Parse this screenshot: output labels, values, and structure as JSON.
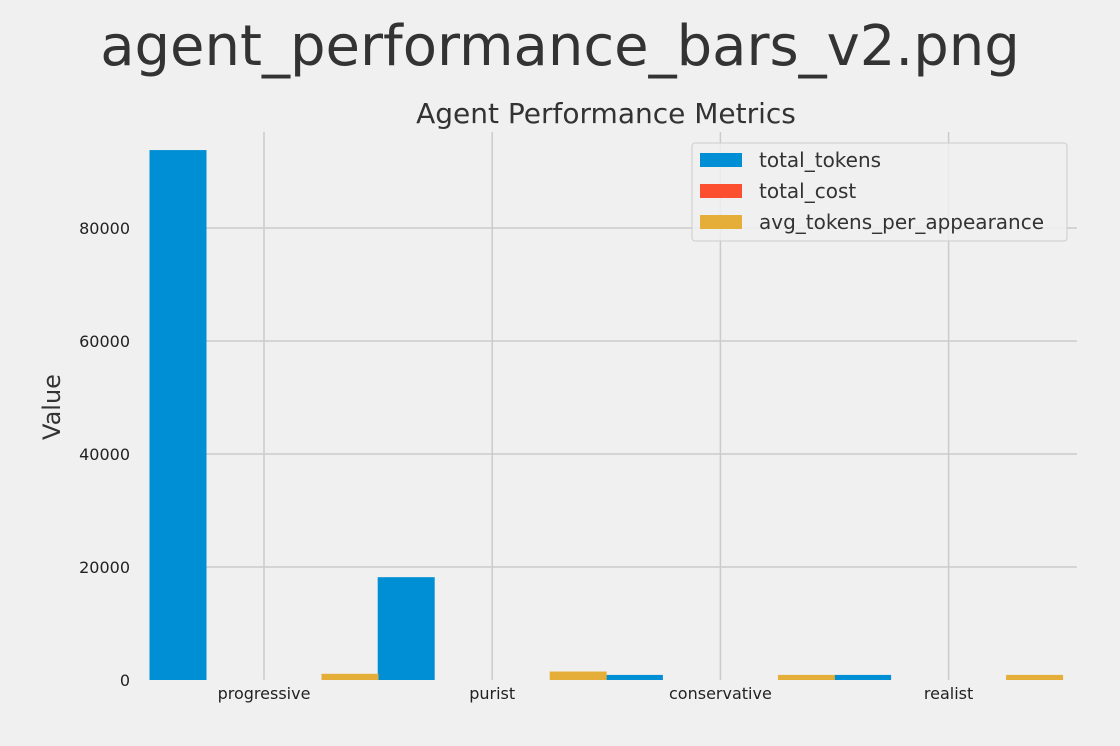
{
  "figure": {
    "suptitle": "agent_performance_bars_v2.png"
  },
  "chart_data": {
    "type": "bar",
    "title": "Agent Performance Metrics",
    "xlabel": "",
    "ylabel": "Value",
    "categories": [
      "progressive",
      "purist",
      "conservative",
      "realist"
    ],
    "series": [
      {
        "name": "total_tokens",
        "color": "#008fd5",
        "values": [
          93800,
          18200,
          900,
          900
        ]
      },
      {
        "name": "total_cost",
        "color": "#fc4f30",
        "values": [
          0.9,
          0.2,
          0.01,
          0.01
        ]
      },
      {
        "name": "avg_tokens_per_appearance",
        "color": "#e5ae38",
        "values": [
          1100,
          1500,
          900,
          900
        ]
      }
    ],
    "ylim": [
      0,
      97000
    ],
    "yticks": [
      0,
      20000,
      40000,
      60000,
      80000
    ],
    "grid": true,
    "legend_position": "top-right"
  }
}
